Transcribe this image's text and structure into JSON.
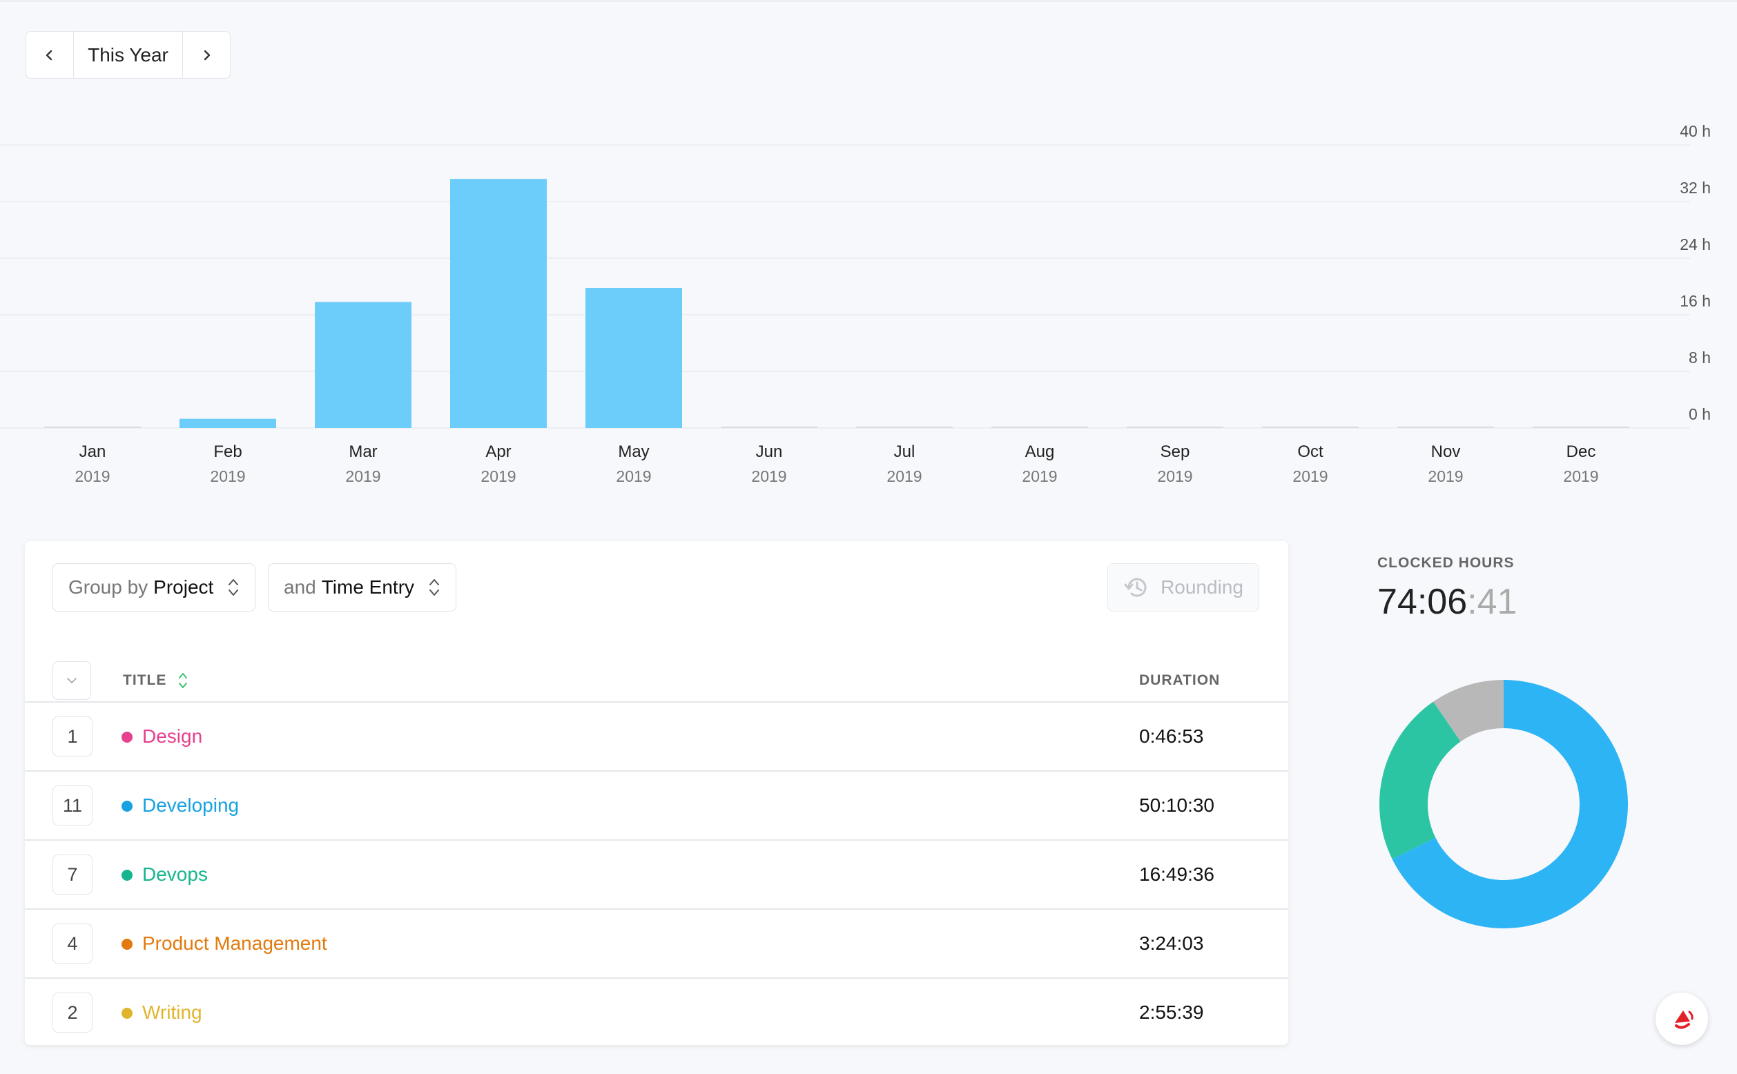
{
  "period": {
    "label": "This Year",
    "prev_icon": "chevron-left-icon",
    "next_icon": "chevron-right-icon"
  },
  "chart_data": {
    "type": "bar",
    "categories": [
      "Jan",
      "Feb",
      "Mar",
      "Apr",
      "May",
      "Jun",
      "Jul",
      "Aug",
      "Sep",
      "Oct",
      "Nov",
      "Dec"
    ],
    "category_years": [
      "2019",
      "2019",
      "2019",
      "2019",
      "2019",
      "2019",
      "2019",
      "2019",
      "2019",
      "2019",
      "2019",
      "2019"
    ],
    "values": [
      0,
      1.3,
      17.8,
      35.2,
      19.8,
      0,
      0,
      0,
      0,
      0,
      0,
      0
    ],
    "ylim": [
      0,
      40
    ],
    "yticks": [
      0,
      8,
      16,
      24,
      32,
      40
    ],
    "ytick_labels": [
      "0 h",
      "8 h",
      "16 h",
      "24 h",
      "32 h",
      "40 h"
    ],
    "y_axis_position": "right",
    "grid": true,
    "bar_color": "#6dcdfa",
    "title": "",
    "xlabel": "",
    "ylabel": ""
  },
  "table": {
    "group_by": {
      "prefix": "Group by",
      "value": "Project"
    },
    "then_by": {
      "prefix": "and",
      "value": "Time Entry"
    },
    "rounding_label": "Rounding",
    "columns": {
      "title": "TITLE",
      "duration": "DURATION"
    },
    "rows": [
      {
        "count": "1",
        "name": "Design",
        "duration": "0:46:53",
        "color": "#e5418e"
      },
      {
        "count": "11",
        "name": "Developing",
        "duration": "50:10:30",
        "color": "#17a2e0"
      },
      {
        "count": "7",
        "name": "Devops",
        "duration": "16:49:36",
        "color": "#17b58f"
      },
      {
        "count": "4",
        "name": "Product Management",
        "duration": "3:24:03",
        "color": "#e27a0e"
      },
      {
        "count": "2",
        "name": "Writing",
        "duration": "2:55:39",
        "color": "#e0b52d"
      }
    ]
  },
  "summary": {
    "label": "CLOCKED HOURS",
    "hours_minutes": "74:06",
    "seconds": ":41",
    "donut": [
      {
        "value": 50.175,
        "color": "#2cb4f5"
      },
      {
        "value": 16.827,
        "color": "#2bc5a4"
      },
      {
        "value": 7.1,
        "color": "#b8b8b8"
      }
    ]
  },
  "fab_icon": "support-icon"
}
